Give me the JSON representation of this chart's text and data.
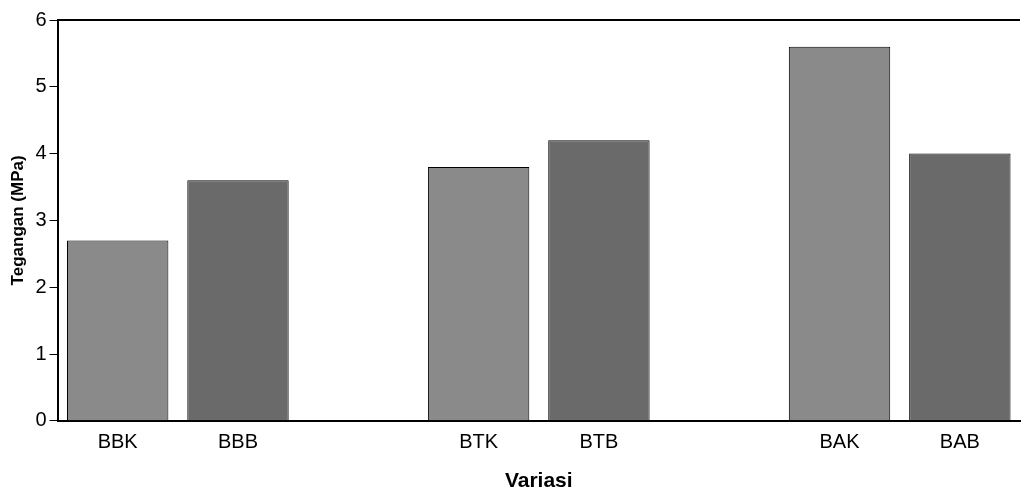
{
  "chart_data": {
    "type": "bar",
    "xlabel": "Variasi",
    "ylabel": "Tegangan (MPa)",
    "categories": [
      "BBK",
      "BBB",
      null,
      "BTK",
      "BTB",
      null,
      "BAK",
      "BAB"
    ],
    "values": [
      2.7,
      3.6,
      null,
      3.8,
      4.2,
      null,
      5.6,
      4.0
    ],
    "colors": [
      "#8a8a8a",
      "#6a6a6a",
      null,
      "#8a8a8a",
      "#6a6a6a",
      null,
      "#8a8a8a",
      "#6a6a6a"
    ],
    "ylim": [
      0,
      6
    ],
    "yticks": [
      0,
      1,
      2,
      3,
      4,
      5,
      6
    ],
    "grid": false,
    "legend": false
  }
}
